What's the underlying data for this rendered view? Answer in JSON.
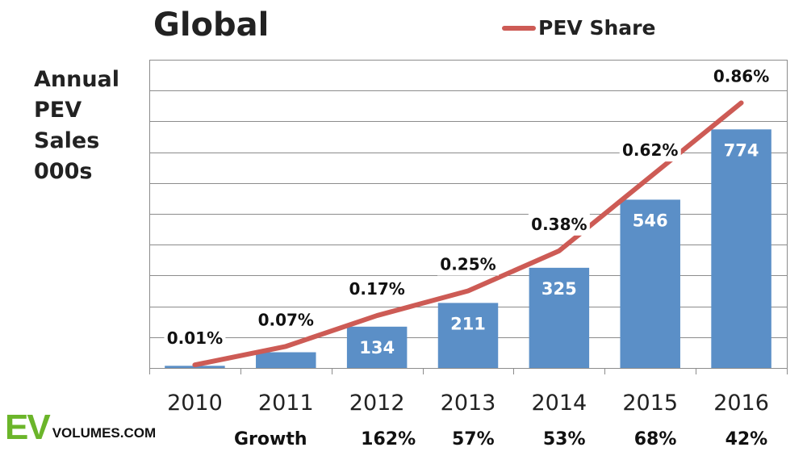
{
  "title": "Global",
  "y_axis_label_lines": [
    "Annual",
    "PEV",
    "Sales",
    "000s"
  ],
  "legend": {
    "label": "PEV Share",
    "color": "#cd5b55"
  },
  "logo": {
    "ev": "EV",
    "volumes": "VOLUMES.COM"
  },
  "growth_row": {
    "label": "Growth",
    "values": [
      "",
      "",
      "162%",
      "57%",
      "53%",
      "68%",
      "42%"
    ]
  },
  "chart_data": {
    "type": "bar",
    "title": "Global",
    "xlabel": "",
    "ylabel": "Annual PEV Sales 000s",
    "categories": [
      "2010",
      "2011",
      "2012",
      "2013",
      "2014",
      "2015",
      "2016"
    ],
    "series": [
      {
        "name": "Annual PEV Sales (000s)",
        "type": "bar",
        "color": "#5b8fc7",
        "values": [
          7,
          51,
          134,
          211,
          325,
          546,
          774
        ],
        "labels": [
          "",
          "",
          "134",
          "211",
          "325",
          "546",
          "774"
        ]
      },
      {
        "name": "PEV Share",
        "type": "line",
        "color": "#cd5b55",
        "values": [
          0.01,
          0.07,
          0.17,
          0.25,
          0.38,
          0.62,
          0.86
        ],
        "labels": [
          "0.01%",
          "0.07%",
          "0.17%",
          "0.25%",
          "0.38%",
          "0.62%",
          "0.86%"
        ]
      }
    ],
    "ylim": [
      0,
      1000
    ],
    "y_gridline_step": 100,
    "y2lim": [
      0,
      1.0
    ],
    "grid": true,
    "legend_position": "top-right"
  }
}
